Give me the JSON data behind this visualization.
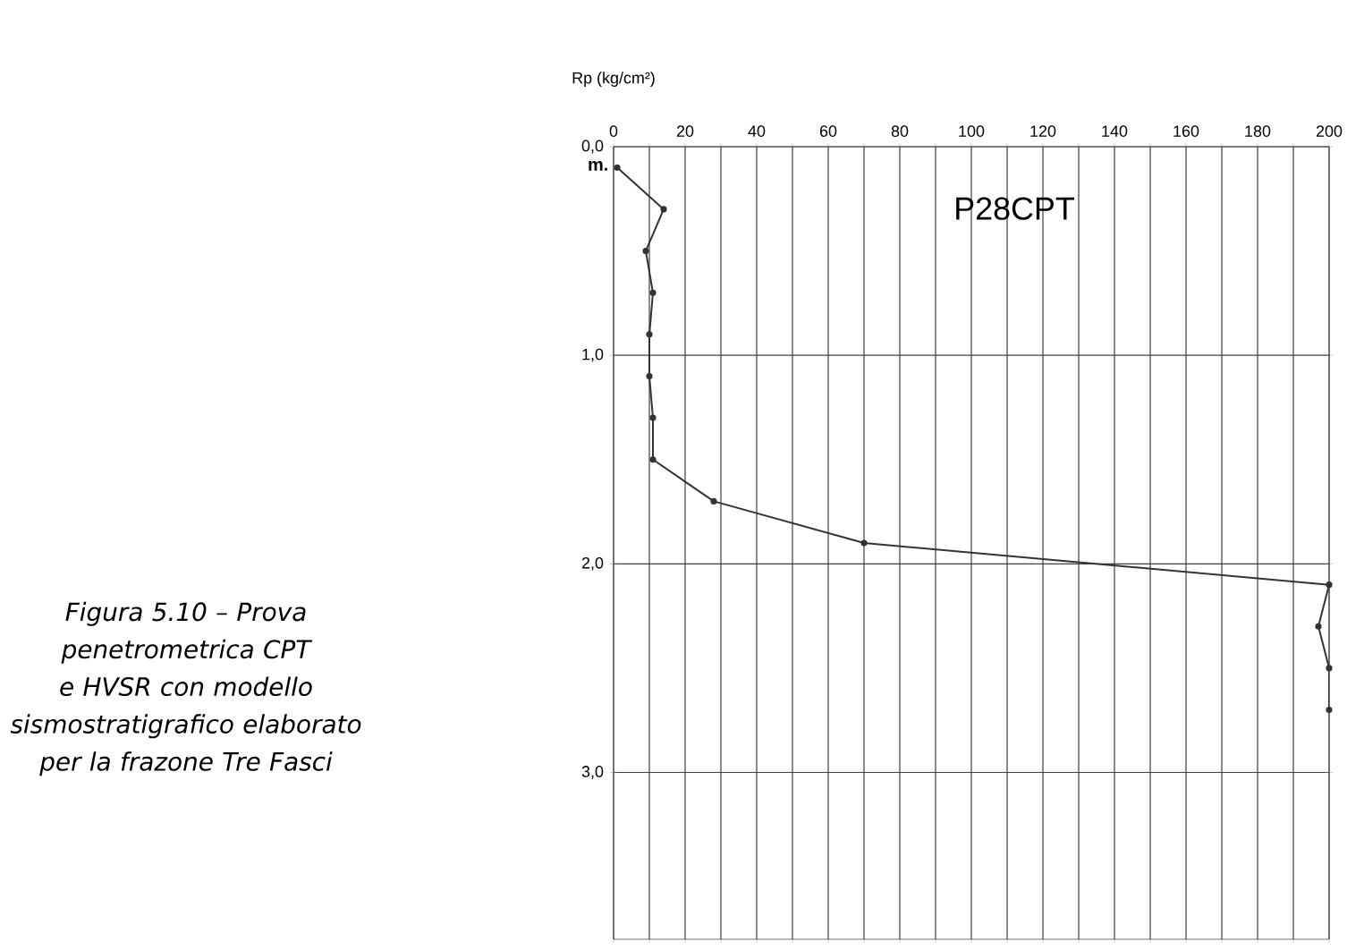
{
  "chart_data": {
    "type": "line",
    "xlabel": "Rp  (kg/cm²)",
    "ylabel": "m.",
    "annotations": [
      "P28CPT",
      "Figura 5.10 – Prova penetrometrica CPT e HVSR con modello sismostratigrafico elaborato per la frazone Tre Fasci"
    ],
    "series": [
      {
        "color": "#333333",
        "x": [
          1,
          14,
          9,
          11,
          10,
          10,
          11,
          11,
          28,
          70,
          200,
          197,
          200,
          200
        ],
        "values": [
          0.1,
          0.3,
          0.5,
          0.7,
          0.9,
          1.1,
          1.3,
          1.5,
          1.7,
          1.9,
          2.1,
          2.3,
          2.5,
          2.7
        ]
      }
    ],
    "xlim": [
      0,
      200
    ],
    "ylim": [
      3.8,
      0
    ],
    "xticks": [
      0,
      {
        "value": 10,
        "label": null
      },
      20,
      {
        "value": 30,
        "label": null
      },
      40,
      {
        "value": 50,
        "label": null
      },
      60,
      {
        "value": 70,
        "label": null
      },
      80,
      {
        "value": 90,
        "label": null
      },
      100,
      {
        "value": 110,
        "label": null
      },
      120,
      {
        "value": 130,
        "label": null
      },
      140,
      {
        "value": 150,
        "label": null
      },
      160,
      {
        "value": 170,
        "label": null
      },
      180,
      {
        "value": 190,
        "label": null
      },
      200
    ],
    "yticks": [
      {
        "value": 0,
        "label": "0,0"
      },
      {
        "value": 1,
        "label": "1,0"
      },
      {
        "value": 2,
        "label": "2,0"
      },
      {
        "value": 3,
        "label": "3,0"
      }
    ],
    "grid": true,
    "marker": "circle",
    "line_style": "solid"
  }
}
